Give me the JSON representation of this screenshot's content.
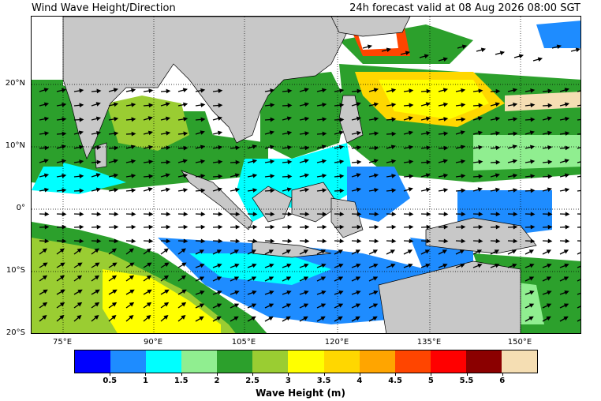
{
  "header": {
    "title": "Wind Wave Height/Direction",
    "valid_time": "24h forecast valid at 08 Aug 2026 08:00 SGT"
  },
  "map": {
    "lon_range": [
      68,
      156
    ],
    "lat_range": [
      -20,
      31
    ],
    "lat_ticks": [
      {
        "value": 20,
        "label": "20°N"
      },
      {
        "value": 10,
        "label": "10°N"
      },
      {
        "value": 0,
        "label": "0°"
      },
      {
        "value": -10,
        "label": "10°S"
      },
      {
        "value": -20,
        "label": "20°S"
      }
    ],
    "lon_ticks": [
      {
        "value": 75,
        "label": "75°E"
      },
      {
        "value": 90,
        "label": "90°E"
      },
      {
        "value": 105,
        "label": "105°E"
      },
      {
        "value": 120,
        "label": "120°E"
      },
      {
        "value": 135,
        "label": "135°E"
      },
      {
        "value": 150,
        "label": "150°E"
      }
    ],
    "land_color": "#c8c8c8",
    "gridline_style": "dotted"
  },
  "colorbar": {
    "label": "Wave Height (m)",
    "colors": [
      "#0000ff",
      "#1e8cff",
      "#00ffff",
      "#90ee90",
      "#2ca02c",
      "#9acd32",
      "#ffff00",
      "#ffd700",
      "#ffa500",
      "#ff4500",
      "#ff0000",
      "#8b0000",
      "#f5deb3"
    ],
    "tick_labels": [
      "0.5",
      "1",
      "1.5",
      "2",
      "2.5",
      "3",
      "3.5",
      "4",
      "4.5",
      "5",
      "5.5",
      "6"
    ]
  }
}
